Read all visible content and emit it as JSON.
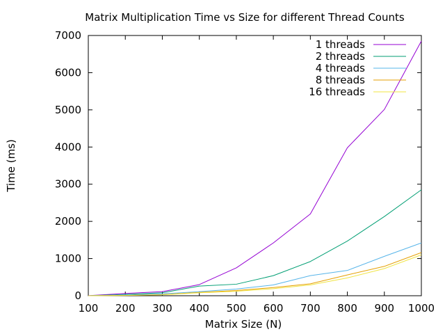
{
  "chart_data": {
    "type": "line",
    "title": "Matrix Multiplication Time vs Size for different Thread Counts",
    "xlabel": "Matrix Size (N)",
    "ylabel": "Time (ms)",
    "xlim": [
      100,
      1000
    ],
    "ylim": [
      0,
      7000
    ],
    "x_ticks": [
      100,
      200,
      300,
      400,
      500,
      600,
      700,
      800,
      900,
      1000
    ],
    "y_ticks": [
      0,
      1000,
      2000,
      3000,
      4000,
      5000,
      6000,
      7000
    ],
    "grid": false,
    "legend_position": "top-right",
    "x": [
      100,
      200,
      300,
      400,
      500,
      600,
      700,
      800,
      900,
      1000
    ],
    "series": [
      {
        "name": "1 threads",
        "color": "#9400d3",
        "values": [
          2,
          60,
          110,
          300,
          750,
          1420,
          2200,
          3980,
          5010,
          6850
        ]
      },
      {
        "name": "2 threads",
        "color": "#009e73",
        "values": [
          1,
          35,
          80,
          260,
          310,
          540,
          920,
          1470,
          2130,
          2850
        ]
      },
      {
        "name": "4 threads",
        "color": "#56b4e9",
        "values": [
          1,
          20,
          50,
          110,
          180,
          290,
          540,
          680,
          1060,
          1420
        ]
      },
      {
        "name": "8 threads",
        "color": "#e69f00",
        "values": [
          0,
          10,
          30,
          90,
          140,
          220,
          320,
          560,
          790,
          1160
        ]
      },
      {
        "name": "16 threads",
        "color": "#f0e442",
        "values": [
          0,
          8,
          25,
          80,
          120,
          190,
          290,
          480,
          730,
          1100
        ]
      }
    ]
  }
}
